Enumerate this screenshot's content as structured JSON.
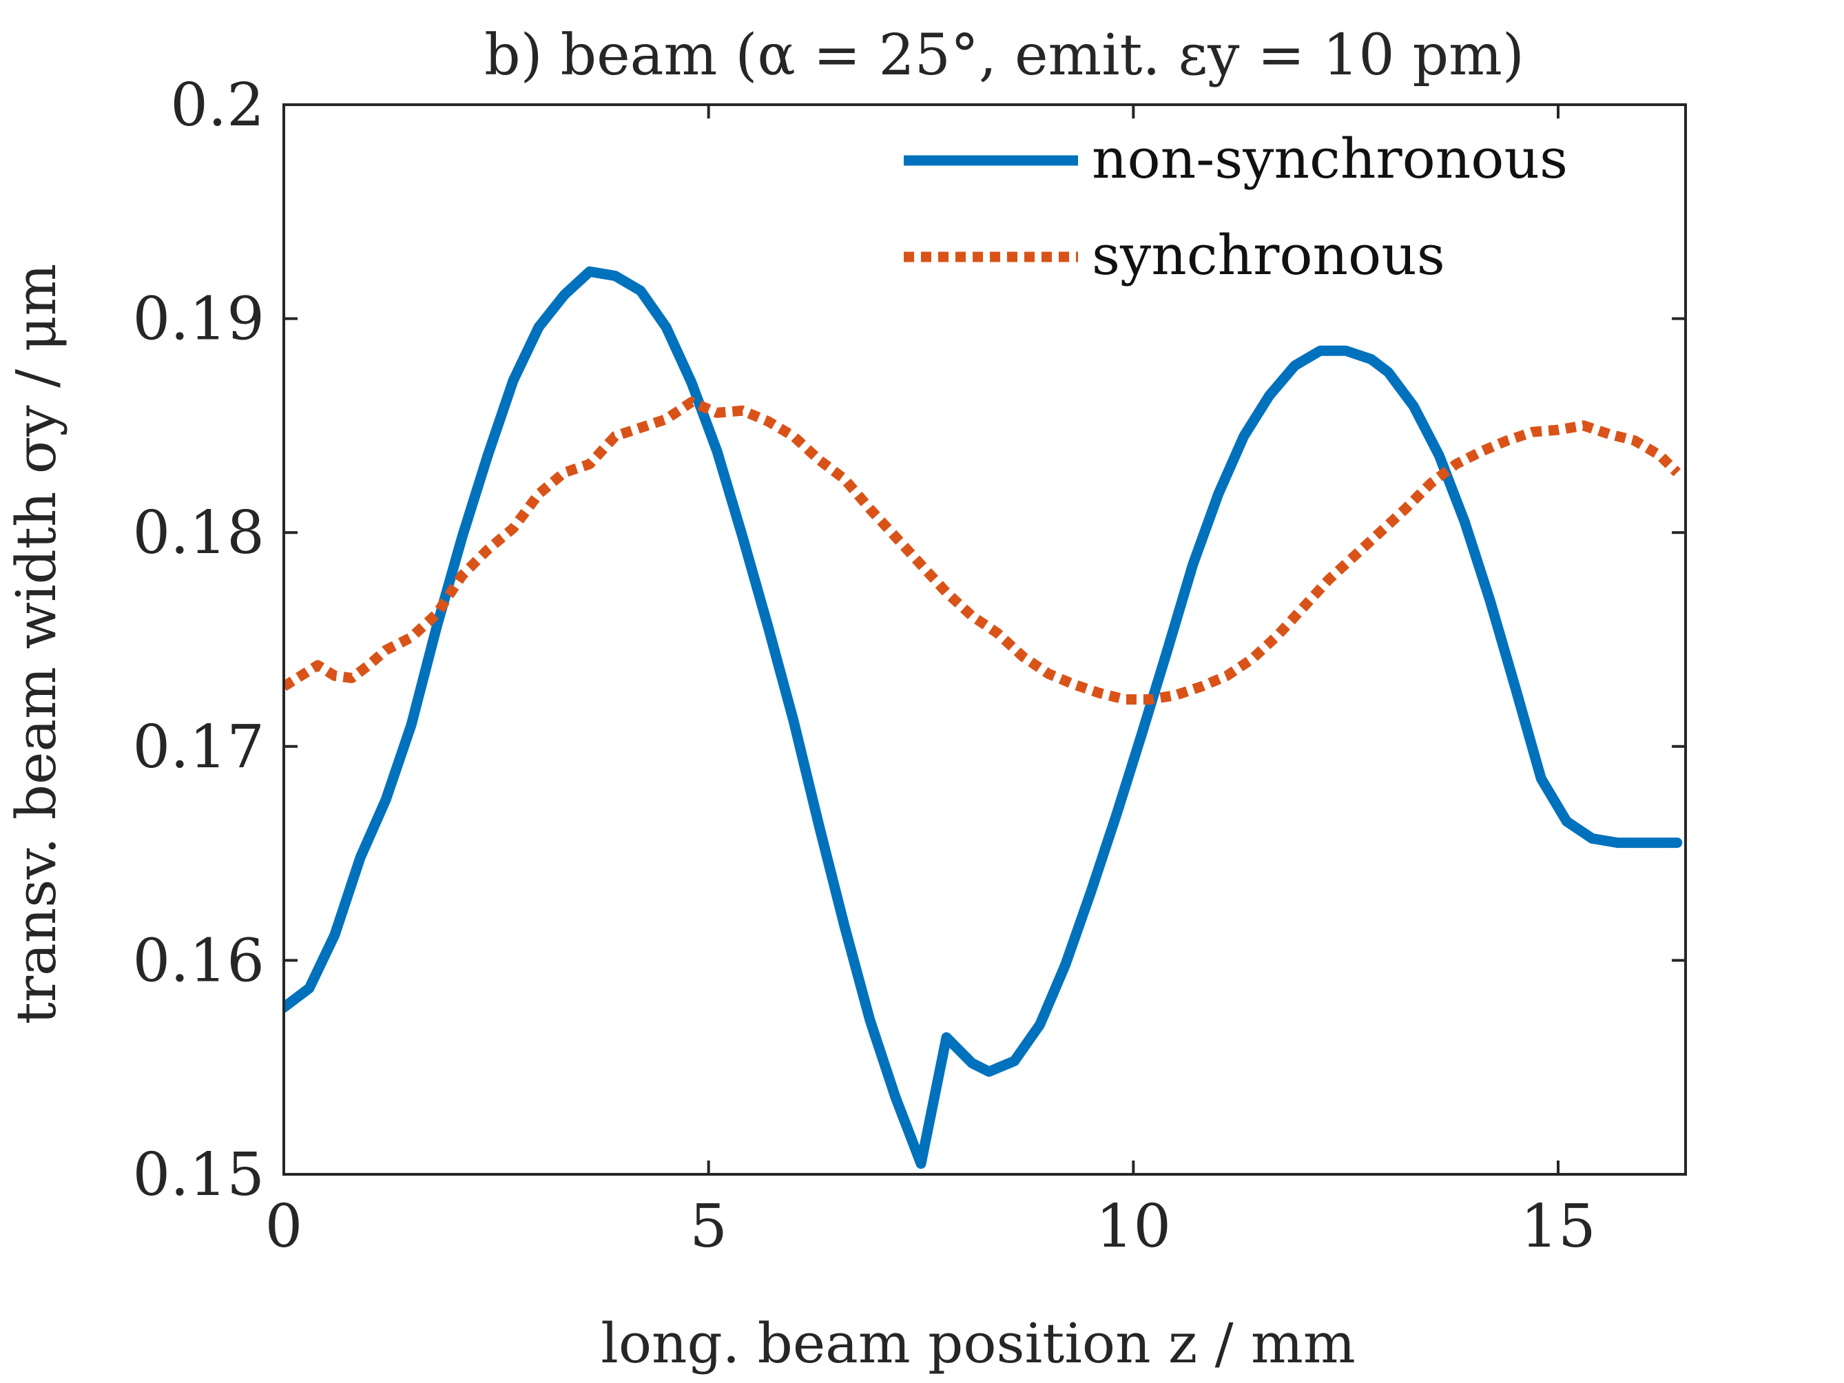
{
  "chart_data": {
    "type": "line",
    "title": "b) beam (α = 25°, emit. εy = 10 pm)",
    "xlabel": "long. beam position z / mm",
    "ylabel": "transv. beam width σy / μm",
    "xlim": [
      0,
      16.5
    ],
    "ylim": [
      0.15,
      0.2
    ],
    "xticks": [
      0,
      5,
      10,
      15
    ],
    "xtick_labels": [
      "0",
      "5",
      "10",
      "15"
    ],
    "yticks": [
      0.15,
      0.16,
      0.17,
      0.18,
      0.19,
      0.2
    ],
    "ytick_labels": [
      "0.15",
      "0.16",
      "0.17",
      "0.18",
      "0.19",
      "0.2"
    ],
    "grid": false,
    "legend_position": "top-right",
    "series": [
      {
        "name": "non-synchronous",
        "color": "#0072BD",
        "style": "solid",
        "x": [
          0,
          0.3,
          0.6,
          0.9,
          1.2,
          1.5,
          1.8,
          2.1,
          2.4,
          2.7,
          3.0,
          3.3,
          3.6,
          3.9,
          4.2,
          4.5,
          4.8,
          5.1,
          5.4,
          5.7,
          6.0,
          6.3,
          6.6,
          6.9,
          7.2,
          7.5,
          7.8,
          8.1,
          8.3,
          8.6,
          8.9,
          9.2,
          9.5,
          9.8,
          10.1,
          10.4,
          10.7,
          11.0,
          11.3,
          11.6,
          11.9,
          12.2,
          12.5,
          12.8,
          13.0,
          13.3,
          13.6,
          13.9,
          14.2,
          14.5,
          14.8,
          15.1,
          15.4,
          15.7,
          16.0,
          16.3,
          16.4
        ],
        "y": [
          0.1578,
          0.1587,
          0.1612,
          0.1648,
          0.1675,
          0.171,
          0.1756,
          0.1798,
          0.1836,
          0.1871,
          0.1896,
          0.1911,
          0.1922,
          0.192,
          0.1913,
          0.1896,
          0.187,
          0.1838,
          0.1798,
          0.1756,
          0.1712,
          0.1663,
          0.1616,
          0.1572,
          0.1536,
          0.1505,
          0.1564,
          0.1552,
          0.1548,
          0.1553,
          0.157,
          0.1598,
          0.1632,
          0.1668,
          0.1706,
          0.1745,
          0.1785,
          0.1818,
          0.1845,
          0.1864,
          0.1878,
          0.1885,
          0.1885,
          0.1881,
          0.1875,
          0.1859,
          0.1836,
          0.1805,
          0.1768,
          0.1727,
          0.1685,
          0.1665,
          0.1657,
          0.1655,
          0.1655,
          0.1655,
          0.1655
        ]
      },
      {
        "name": "synchronous",
        "color": "#D95319",
        "style": "dotted",
        "x": [
          0,
          0.2,
          0.4,
          0.6,
          0.8,
          1.0,
          1.2,
          1.5,
          1.8,
          2.1,
          2.4,
          2.7,
          3.0,
          3.3,
          3.6,
          3.9,
          4.2,
          4.5,
          4.8,
          5.1,
          5.4,
          5.7,
          6.0,
          6.3,
          6.6,
          6.9,
          7.2,
          7.5,
          7.8,
          8.1,
          8.4,
          8.7,
          9.0,
          9.3,
          9.6,
          9.9,
          10.2,
          10.5,
          10.8,
          11.1,
          11.4,
          11.7,
          12.0,
          12.3,
          12.6,
          12.9,
          13.2,
          13.5,
          13.8,
          14.1,
          14.4,
          14.7,
          15.0,
          15.3,
          15.6,
          15.9,
          16.2,
          16.4
        ],
        "y": [
          0.1728,
          0.1733,
          0.1738,
          0.1733,
          0.1732,
          0.1738,
          0.1745,
          0.1751,
          0.1762,
          0.178,
          0.1792,
          0.1802,
          0.1818,
          0.1828,
          0.1832,
          0.1845,
          0.1849,
          0.1853,
          0.1861,
          0.1856,
          0.1857,
          0.1852,
          0.1845,
          0.1834,
          0.1825,
          0.1811,
          0.1798,
          0.1785,
          0.1772,
          0.1761,
          0.1753,
          0.1742,
          0.1734,
          0.1729,
          0.1725,
          0.1722,
          0.1722,
          0.1724,
          0.1728,
          0.1733,
          0.1741,
          0.1752,
          0.1765,
          0.1778,
          0.1789,
          0.18,
          0.1811,
          0.1823,
          0.1832,
          0.1838,
          0.1843,
          0.1847,
          0.1848,
          0.185,
          0.1846,
          0.1843,
          0.1836,
          0.1828
        ]
      }
    ]
  }
}
